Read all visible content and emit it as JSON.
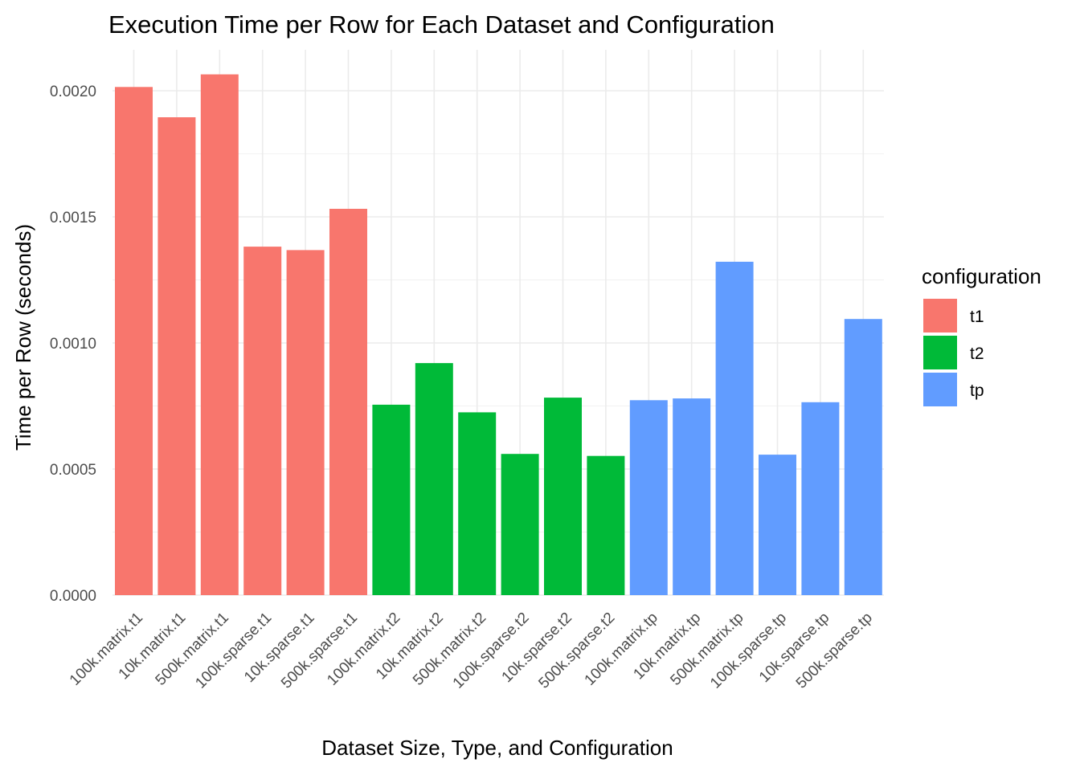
{
  "chart_data": {
    "type": "bar",
    "title": "Execution Time per Row for Each Dataset and Configuration",
    "xlabel": "Dataset Size, Type, and Configuration",
    "ylabel": "Time per Row (seconds)",
    "ylim": [
      0,
      0.00215
    ],
    "yticks": [
      "0.0000",
      "0.0005",
      "0.0010",
      "0.0015",
      "0.0020"
    ],
    "ytick_values": [
      0,
      0.0005,
      0.001,
      0.0015,
      0.002
    ],
    "grid": true,
    "legend": {
      "title": "configuration",
      "position": "right",
      "entries": [
        {
          "name": "t1",
          "color": "#F8766D"
        },
        {
          "name": "t2",
          "color": "#00BA38"
        },
        {
          "name": "tp",
          "color": "#619CFF"
        }
      ]
    },
    "bars": [
      {
        "category": "100k.matrix.t1",
        "configuration": "t1",
        "value": 0.002015
      },
      {
        "category": "10k.matrix.t1",
        "configuration": "t1",
        "value": 0.001895
      },
      {
        "category": "500k.matrix.t1",
        "configuration": "t1",
        "value": 0.002065
      },
      {
        "category": "100k.sparse.t1",
        "configuration": "t1",
        "value": 0.001382
      },
      {
        "category": "10k.sparse.t1",
        "configuration": "t1",
        "value": 0.001368
      },
      {
        "category": "500k.sparse.t1",
        "configuration": "t1",
        "value": 0.001532
      },
      {
        "category": "100k.matrix.t2",
        "configuration": "t2",
        "value": 0.000755
      },
      {
        "category": "10k.matrix.t2",
        "configuration": "t2",
        "value": 0.00092
      },
      {
        "category": "500k.matrix.t2",
        "configuration": "t2",
        "value": 0.000725
      },
      {
        "category": "100k.sparse.t2",
        "configuration": "t2",
        "value": 0.00056
      },
      {
        "category": "10k.sparse.t2",
        "configuration": "t2",
        "value": 0.000783
      },
      {
        "category": "500k.sparse.t2",
        "configuration": "t2",
        "value": 0.000552
      },
      {
        "category": "100k.matrix.tp",
        "configuration": "tp",
        "value": 0.000773
      },
      {
        "category": "10k.matrix.tp",
        "configuration": "tp",
        "value": 0.00078
      },
      {
        "category": "500k.matrix.tp",
        "configuration": "tp",
        "value": 0.001322
      },
      {
        "category": "100k.sparse.tp",
        "configuration": "tp",
        "value": 0.000557
      },
      {
        "category": "10k.sparse.tp",
        "configuration": "tp",
        "value": 0.000765
      },
      {
        "category": "500k.sparse.tp",
        "configuration": "tp",
        "value": 0.001095
      }
    ]
  }
}
